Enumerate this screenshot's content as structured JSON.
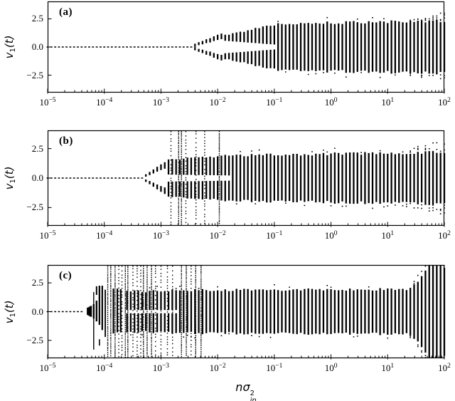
{
  "figure": {
    "background": "#ffffff",
    "ink": "#000000",
    "xlabel": {
      "n": "n",
      "sigma": "σ",
      "sup": "2",
      "sub": "in"
    },
    "ylabel": {
      "v": "v",
      "sub": "1",
      "open": "(",
      "t": "t",
      "close": ")"
    },
    "xticks": {
      "base": "10",
      "exps": [
        "−5",
        "−4",
        "−3",
        "−2",
        "−1",
        "0",
        "1",
        "2"
      ]
    }
  },
  "chart_data": [
    {
      "panel": "a",
      "label": "(a)",
      "type": "scatter",
      "xscale": "log",
      "xlim": [
        1e-05,
        100
      ],
      "ylim": [
        -4.05,
        4.05
      ],
      "xlabel": "n·σ_in²",
      "ylabel": "v1(t)",
      "xtick_labels": [
        "10⁻⁵",
        "10⁻⁴",
        "10⁻³",
        "10⁻²",
        "10⁻¹",
        "10⁰",
        "10¹",
        "10²"
      ],
      "yticks": {
        "values": [
          2.5,
          0.0,
          -2.5
        ],
        "labels": [
          "2.5",
          "0.0",
          "−2.5"
        ]
      },
      "samples_per_decade": 15,
      "zero_line": {
        "x0": 1e-05,
        "x1": 0.0042
      },
      "branches": {
        "x0": 0.0036,
        "x1": 0.0135,
        "amp0": 0.18,
        "amp1": 0.95,
        "len0": 0.22,
        "len1": 0.5
      },
      "double_band": {
        "x0": 0.0135,
        "x1": 0.115,
        "outer0": 1.05,
        "outer1": 2.0,
        "inner0": 0.55,
        "inner1": 0.22
      },
      "band": [
        {
          "x0": 0.115,
          "x1": 100,
          "amp0": 2.05,
          "amp1": 2.35,
          "gap": 0
        }
      ],
      "spikes": [],
      "custom_bars": [],
      "edge_scatter": {
        "x0": 22,
        "x1": 100,
        "pad0": 0.1,
        "pad1": 0.75
      }
    },
    {
      "panel": "b",
      "label": "(b)",
      "type": "scatter",
      "xscale": "log",
      "xlim": [
        1e-05,
        100
      ],
      "ylim": [
        -4.05,
        4.05
      ],
      "xlabel": "n·σ_in²",
      "ylabel": "v1(t)",
      "xtick_labels": [
        "10⁻⁵",
        "10⁻⁴",
        "10⁻³",
        "10⁻²",
        "10⁻¹",
        "10⁰",
        "10¹",
        "10²"
      ],
      "yticks": {
        "values": [
          2.5,
          0.0,
          -2.5
        ],
        "labels": [
          "2.5",
          "0.0",
          "−2.5"
        ]
      },
      "samples_per_decade": 15,
      "zero_line": {
        "x0": 1e-05,
        "x1": 0.0005
      },
      "branches": {
        "x0": 0.00048,
        "x1": 0.00125,
        "amp0": 0.22,
        "amp1": 1.05,
        "len0": 0.2,
        "len1": 0.55
      },
      "double_band": {
        "x0": 0.00125,
        "x1": 0.018,
        "outer0": 1.55,
        "outer1": 1.92,
        "inner0": 0.3,
        "inner1": 0.22
      },
      "band": [
        {
          "x0": 0.018,
          "x1": 100,
          "amp0": 1.92,
          "amp1": 2.2,
          "gap": 0
        }
      ],
      "spikes": [
        {
          "x": 0.0015,
          "density": "light"
        },
        {
          "x": 0.00205,
          "density": "heavy"
        },
        {
          "x": 0.0023,
          "density": "heavy"
        },
        {
          "x": 0.00275,
          "density": "light"
        },
        {
          "x": 0.00415,
          "density": "light"
        },
        {
          "x": 0.0059,
          "density": "light"
        },
        {
          "x": 0.0107,
          "density": "heavy"
        }
      ],
      "custom_bars": [],
      "edge_scatter": {
        "x0": 18,
        "x1": 100,
        "pad0": 0.15,
        "pad1": 1.15
      }
    },
    {
      "panel": "c",
      "label": "(c)",
      "type": "scatter",
      "xscale": "log",
      "xlim": [
        1e-05,
        100
      ],
      "ylim": [
        -4.05,
        4.05
      ],
      "xlabel": "n·σ_in²",
      "ylabel": "v1(t)",
      "xtick_labels": [
        "10⁻⁵",
        "10⁻⁴",
        "10⁻³",
        "10⁻²",
        "10⁻¹",
        "10⁰",
        "10¹",
        "10²"
      ],
      "yticks": {
        "values": [
          2.5,
          0.0,
          -2.5
        ],
        "labels": [
          "2.5",
          "0.0",
          "−2.5"
        ]
      },
      "samples_per_decade": 15,
      "zero_line": {
        "x0": 1e-05,
        "x1": 4.6e-05
      },
      "branches": null,
      "double_band": null,
      "band": [
        {
          "x0": 0.00022,
          "x1": 0.0019,
          "amp0": 1.72,
          "amp1": 1.85,
          "gap": 0.14
        },
        {
          "x0": 0.0019,
          "x1": 25,
          "amp0": 1.85,
          "amp1": 1.95,
          "gap": 0
        },
        {
          "x0": 25,
          "x1": 50,
          "amp0": 1.95,
          "amp1": 3.4,
          "gap": 0
        },
        {
          "x0": 50,
          "x1": 100,
          "amp0": 3.8,
          "amp1": 4.05,
          "gap": 0
        }
      ],
      "spikes": [
        {
          "x": 0.000115,
          "density": "heavy"
        },
        {
          "x": 0.00013,
          "density": "heavy"
        },
        {
          "x": 0.000155,
          "density": "heavy"
        },
        {
          "x": 0.00018,
          "density": "light"
        },
        {
          "x": 0.000205,
          "density": "light"
        },
        {
          "x": 0.000235,
          "density": "heavy"
        },
        {
          "x": 0.00026,
          "density": "heavy"
        },
        {
          "x": 0.00032,
          "density": "light"
        },
        {
          "x": 0.00038,
          "density": "light"
        },
        {
          "x": 0.00044,
          "density": "light"
        },
        {
          "x": 0.00049,
          "density": "heavy"
        },
        {
          "x": 0.00057,
          "density": "heavy"
        },
        {
          "x": 0.00068,
          "density": "heavy"
        },
        {
          "x": 0.0008,
          "density": "light"
        },
        {
          "x": 0.001,
          "density": "light"
        },
        {
          "x": 0.0013,
          "density": "light"
        },
        {
          "x": 0.0016,
          "density": "light"
        },
        {
          "x": 0.0023,
          "density": "heavy"
        },
        {
          "x": 0.0028,
          "density": "heavy"
        },
        {
          "x": 0.0034,
          "density": "light"
        },
        {
          "x": 0.0041,
          "density": "heavy"
        },
        {
          "x": 0.0051,
          "density": "heavy"
        }
      ],
      "custom_bars": [
        {
          "x": 5.1e-05,
          "y0": -0.3,
          "y1": 0.35,
          "w": 2.6
        },
        {
          "x": 5.45e-05,
          "y0": -0.38,
          "y1": 0.42,
          "w": 2.6
        },
        {
          "x": 5.8e-05,
          "y0": -0.45,
          "y1": 0.5,
          "w": 2.6
        },
        {
          "x": 6.5e-05,
          "y0": -3.3,
          "y1": 1.7,
          "w": 1.4
        },
        {
          "x": 6.5e-05,
          "y0": -0.6,
          "y1": 0.65,
          "w": 2.4
        },
        {
          "x": 7.3e-05,
          "y0": -0.85,
          "y1": 0.95,
          "w": 2.4
        },
        {
          "x": 7.3e-05,
          "y0": 1.45,
          "y1": 2.2,
          "w": 2.0
        },
        {
          "x": 8.2e-05,
          "y0": -1.15,
          "y1": 2.25,
          "w": 2.2
        },
        {
          "x": 8.2e-05,
          "y0": -2.95,
          "y1": -2.4,
          "w": 1.6
        },
        {
          "x": 9.2e-05,
          "y0": -1.6,
          "y1": 2.25,
          "w": 2.2
        },
        {
          "x": 0.000104,
          "y0": -2.2,
          "y1": 1.9,
          "w": 1.8
        },
        {
          "x": 0.000145,
          "y0": -1.9,
          "y1": 2.0,
          "w": 2.2
        },
        {
          "x": 0.00017,
          "y0": -1.8,
          "y1": 2.0,
          "w": 2.2
        },
        {
          "x": 0.000195,
          "y0": -1.8,
          "y1": 1.95,
          "w": 2.2
        }
      ],
      "edge_scatter": {
        "x0": 24,
        "x1": 55,
        "pad0": 0.2,
        "pad1": 1.2
      }
    }
  ]
}
